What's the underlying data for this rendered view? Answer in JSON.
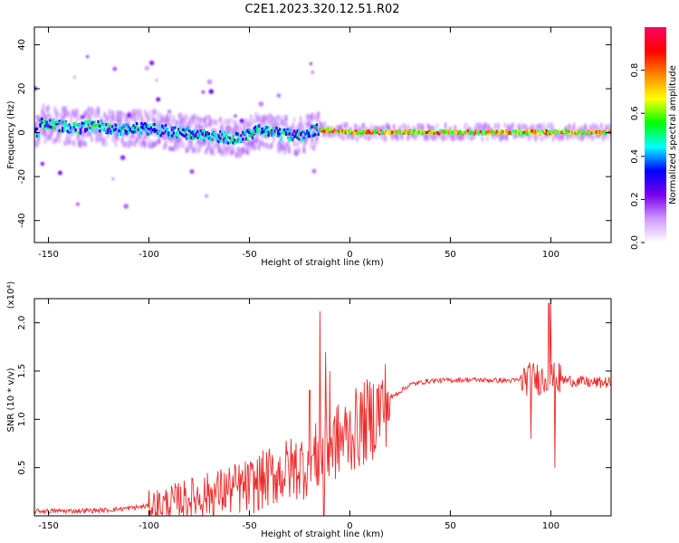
{
  "title": "C2E1.2023.320.12.51.R02",
  "colors": {
    "snr_line": "#ee2b2b",
    "axis": "#000000"
  },
  "chart_data": [
    {
      "type": "heatmap",
      "xlabel": "Height of straight line (km)",
      "ylabel": "Frequency (Hz)",
      "xlim": [
        -157,
        130
      ],
      "ylim": [
        -50,
        48
      ],
      "xticks": [
        -150,
        -100,
        -50,
        0,
        50,
        100
      ],
      "yticks": [
        -40,
        -20,
        0,
        20,
        40
      ],
      "colorbar": {
        "label": "Normalized spectral amplitude",
        "range": [
          0,
          1
        ],
        "ticks": [
          {
            "value": 0.0,
            "label": "0.0"
          },
          {
            "value": 0.2,
            "label": "0.2"
          },
          {
            "value": 0.4,
            "label": "0.4"
          },
          {
            "value": 0.6,
            "label": "0.6"
          },
          {
            "value": 0.8,
            "label": "0.8"
          }
        ],
        "colormap": [
          "#ffffff",
          "#cc99ff",
          "#7700ee",
          "#0000ff",
          "#00ffff",
          "#00ff00",
          "#ffff00",
          "#ff8800",
          "#ff0000",
          "#ff0066"
        ]
      },
      "ridge": [
        {
          "x": -155,
          "f": 4
        },
        {
          "x": -145,
          "f": 3
        },
        {
          "x": -135,
          "f": 2
        },
        {
          "x": -125,
          "f": 3
        },
        {
          "x": -115,
          "f": 1
        },
        {
          "x": -105,
          "f": 2
        },
        {
          "x": -95,
          "f": 1
        },
        {
          "x": -85,
          "f": 0
        },
        {
          "x": -75,
          "f": -1
        },
        {
          "x": -65,
          "f": -2
        },
        {
          "x": -55,
          "f": -3
        },
        {
          "x": -45,
          "f": 1
        },
        {
          "x": -35,
          "f": -1
        },
        {
          "x": -25,
          "f": -2
        },
        {
          "x": -18,
          "f": 1
        },
        {
          "x": -10,
          "f": 1
        },
        {
          "x": 0,
          "f": 0
        },
        {
          "x": 25,
          "f": 0
        },
        {
          "x": 50,
          "f": 0
        },
        {
          "x": 75,
          "f": 0
        },
        {
          "x": 100,
          "f": 0
        },
        {
          "x": 130,
          "f": 0
        }
      ]
    },
    {
      "type": "line",
      "xlabel": "Height of straight line (km)",
      "ylabel": "SNR (10 * v/v)",
      "yscale_label": "(x10⁴)",
      "xlim": [
        -157,
        130
      ],
      "ylim": [
        0,
        2.25
      ],
      "xticks": [
        -150,
        -100,
        -50,
        0,
        50,
        100
      ],
      "yticks": [
        0.5,
        1.0,
        1.5,
        2.0
      ],
      "ytick_labels": [
        "0.5",
        "1.0",
        "1.5",
        "2.0"
      ],
      "series": [
        {
          "values": [
            {
              "x": -157,
              "y": 0.05
            },
            {
              "x": -140,
              "y": 0.05
            },
            {
              "x": -120,
              "y": 0.06
            },
            {
              "x": -105,
              "y": 0.09
            },
            {
              "x": -90,
              "y": 0.13
            },
            {
              "x": -80,
              "y": 0.18
            },
            {
              "x": -70,
              "y": 0.22
            },
            {
              "x": -60,
              "y": 0.27
            },
            {
              "x": -50,
              "y": 0.3
            },
            {
              "x": -40,
              "y": 0.4
            },
            {
              "x": -30,
              "y": 0.48
            },
            {
              "x": -20,
              "y": 0.55
            },
            {
              "x": -15,
              "y": 0.62
            },
            {
              "x": -10,
              "y": 0.72
            },
            {
              "x": 0,
              "y": 0.85
            },
            {
              "x": 10,
              "y": 1.0
            },
            {
              "x": 20,
              "y": 1.22
            },
            {
              "x": 30,
              "y": 1.36
            },
            {
              "x": 40,
              "y": 1.4
            },
            {
              "x": 60,
              "y": 1.41
            },
            {
              "x": 80,
              "y": 1.4
            },
            {
              "x": 90,
              "y": 1.42
            },
            {
              "x": 100,
              "y": 1.42
            },
            {
              "x": 110,
              "y": 1.4
            },
            {
              "x": 120,
              "y": 1.38
            },
            {
              "x": 130,
              "y": 1.38
            }
          ],
          "spikes": [
            {
              "x": -15,
              "y": 2.12
            },
            {
              "x": -13,
              "y": 0.01
            },
            {
              "x": -12,
              "y": 1.7
            },
            {
              "x": -20,
              "y": 1.3
            },
            {
              "x": -10,
              "y": 1.5
            },
            {
              "x": 90,
              "y": 0.8
            },
            {
              "x": 99,
              "y": 2.2
            },
            {
              "x": 100,
              "y": 2.25
            },
            {
              "x": 102,
              "y": 0.5
            }
          ]
        }
      ]
    }
  ]
}
